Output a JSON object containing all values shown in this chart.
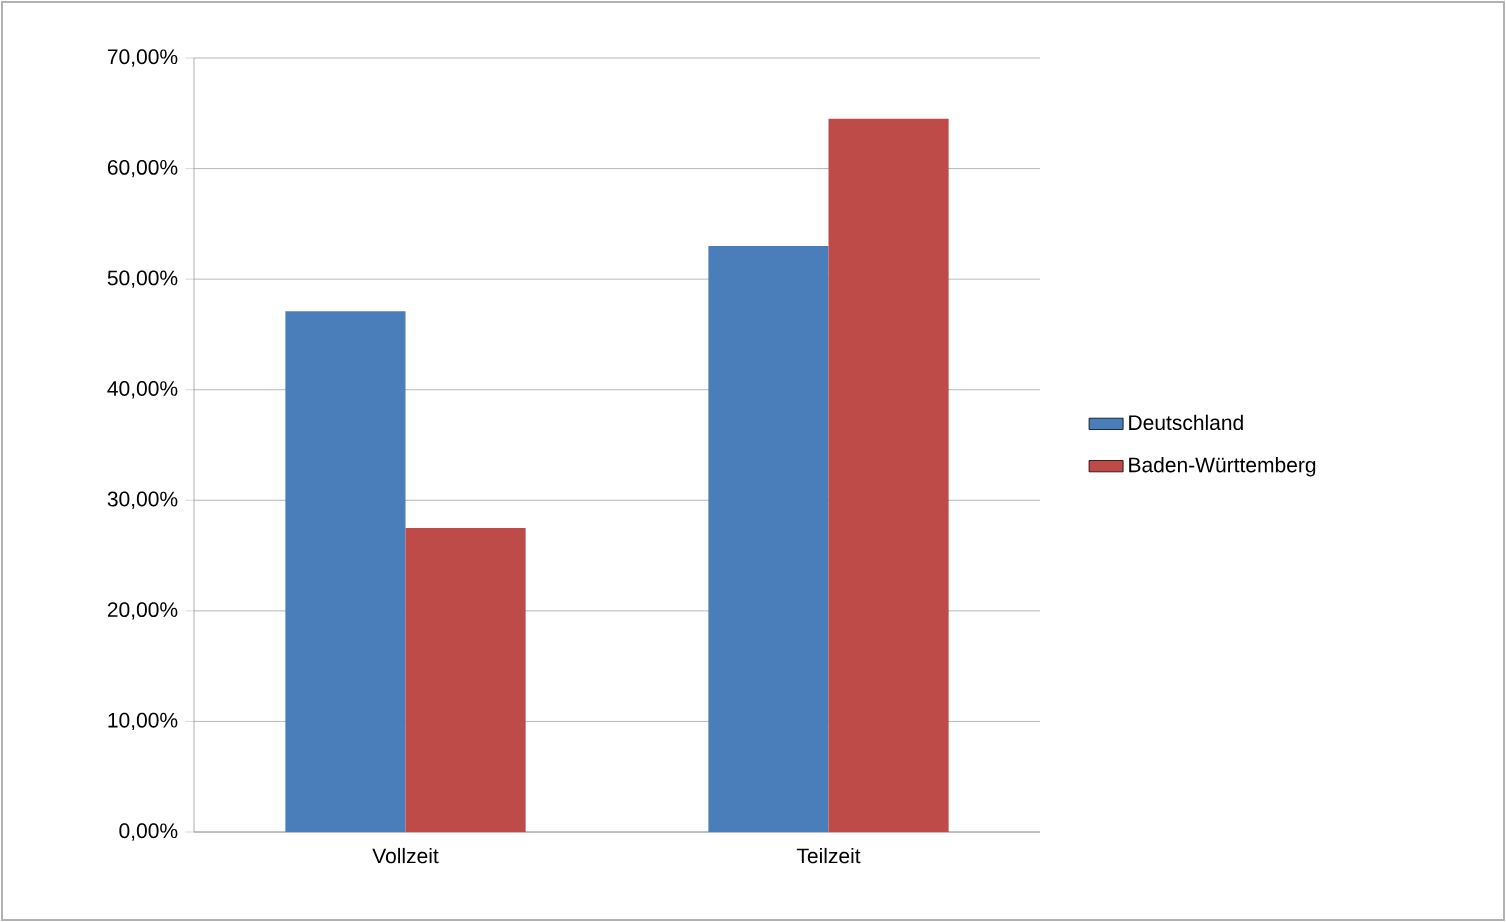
{
  "chart_data": {
    "type": "bar",
    "categories": [
      "Vollzeit",
      "Teilzeit"
    ],
    "series": [
      {
        "name": "Deutschland",
        "color": "#4a7ebb",
        "values": [
          47.1,
          53.0
        ]
      },
      {
        "name": "Baden-Württemberg",
        "color": "#be4b48",
        "values": [
          27.5,
          64.5
        ]
      }
    ],
    "ylim": [
      0,
      70
    ],
    "yticks": [
      {
        "value": 0,
        "label": "0,00%"
      },
      {
        "value": 10,
        "label": "10,00%"
      },
      {
        "value": 20,
        "label": "20,00%"
      },
      {
        "value": 30,
        "label": "30,00%"
      },
      {
        "value": 40,
        "label": "40,00%"
      },
      {
        "value": 50,
        "label": "50,00%"
      },
      {
        "value": 60,
        "label": "60,00%"
      },
      {
        "value": 70,
        "label": "70,00%"
      }
    ],
    "grid": "y",
    "legend": "right"
  }
}
